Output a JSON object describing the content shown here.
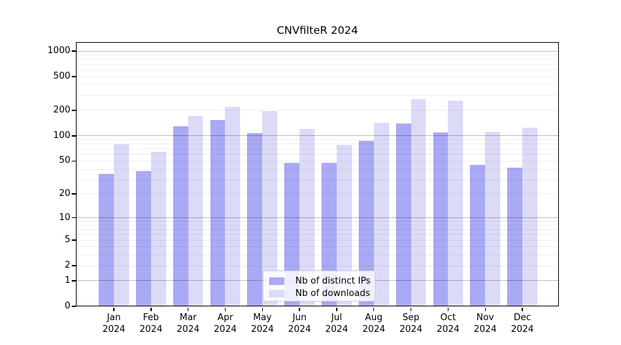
{
  "chart_data": {
    "type": "bar",
    "title": "CNVfilteR 2024",
    "categories": [
      "Jan 2024",
      "Feb 2024",
      "Mar 2024",
      "Apr 2024",
      "May 2024",
      "Jun 2024",
      "Jul 2024",
      "Aug 2024",
      "Sep 2024",
      "Oct 2024",
      "Nov 2024",
      "Dec 2024"
    ],
    "series": [
      {
        "name": "Nb of distinct IPs",
        "color": "#a9a9f5",
        "values": [
          35,
          38,
          129,
          155,
          107,
          48,
          48,
          88,
          140,
          110,
          45,
          42
        ]
      },
      {
        "name": "Nb of downloads",
        "color": "#dbdbf8",
        "values": [
          79,
          65,
          173,
          218,
          197,
          120,
          78,
          143,
          270,
          262,
          112,
          126
        ]
      }
    ],
    "yscale": "log1p",
    "ylim": [
      0,
      1282
    ],
    "yticks": [
      0,
      1,
      2,
      5,
      10,
      20,
      50,
      100,
      200,
      500,
      1000
    ],
    "grid": "horizontal, minor at 2-9 per decade, major at powers of 10",
    "legend_position": "bottom-center",
    "colors": {
      "minor_grid": "#efefef",
      "major_grid": "#c2c2c2",
      "axis": "#000000",
      "background": "#ffffff"
    }
  }
}
